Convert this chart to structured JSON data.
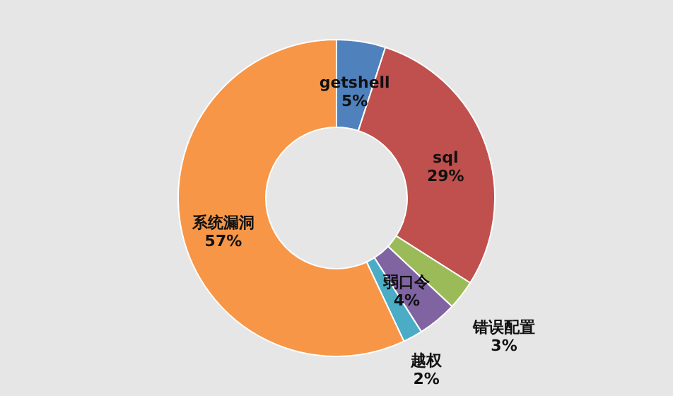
{
  "chart_data": {
    "type": "donut",
    "categories": [
      "getshell",
      "sql",
      "错误配置",
      "弱口令",
      "越权",
      "系统漏洞"
    ],
    "values": [
      5,
      29,
      3,
      4,
      2,
      57
    ],
    "value_labels": [
      "5%",
      "29%",
      "3%",
      "4%",
      "2%",
      "57%"
    ],
    "colors": [
      "#4f81bd",
      "#c0504d",
      "#9bbb59",
      "#8064a2",
      "#4bacc6",
      "#f79646"
    ],
    "legend": false
  }
}
